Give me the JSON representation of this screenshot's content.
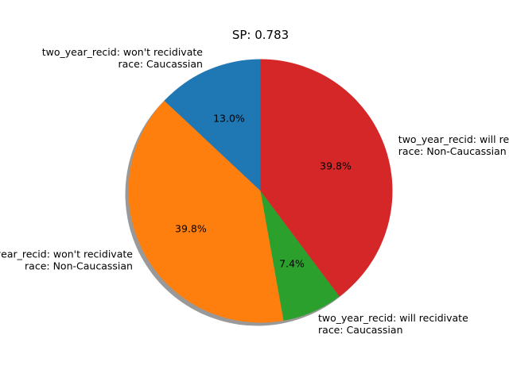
{
  "chart_data": {
    "type": "pie",
    "title": "SP: 0.783",
    "slices": [
      {
        "label_lines": [
          "two_year_recid: won't recidivate",
          "race: Caucassian"
        ],
        "value": 13.0,
        "pct_label": "13.0%",
        "color": "#1f77b4"
      },
      {
        "label_lines": [
          "two_year_recid: won't recidivate",
          "race: Non-Caucassian"
        ],
        "value": 39.8,
        "pct_label": "39.8%",
        "color": "#ff7f0e"
      },
      {
        "label_lines": [
          "two_year_recid: will recidivate",
          "race: Caucassian"
        ],
        "value": 7.4,
        "pct_label": "7.4%",
        "color": "#2ca02c"
      },
      {
        "label_lines": [
          "two_year_recid: will recidivate",
          "race: Non-Caucassian"
        ],
        "value": 39.8,
        "pct_label": "39.8%",
        "color": "#d62728"
      }
    ],
    "start_angle_deg": 90,
    "direction": "counterclockwise",
    "shadow": true
  }
}
